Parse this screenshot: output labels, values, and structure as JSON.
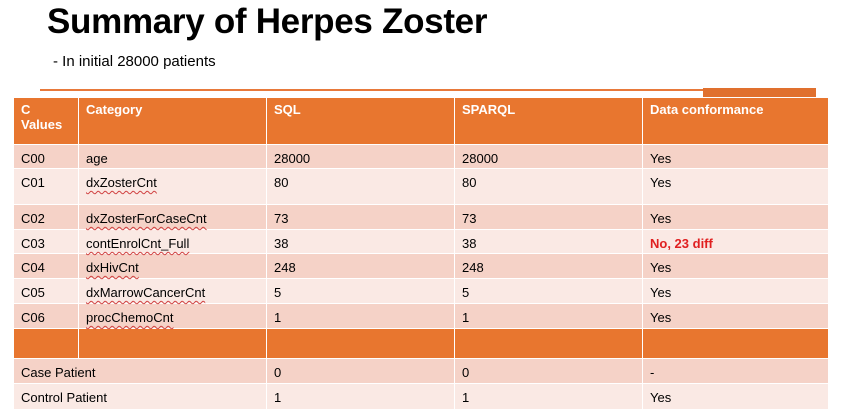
{
  "slide": {
    "title": "Summary of Herpes Zoster",
    "subtitle": "- In initial 28000 patients"
  },
  "table": {
    "headers": [
      "C Values",
      "Category",
      "SQL",
      "SPARQL",
      "Data conformance"
    ],
    "rows": [
      {
        "c": "C00",
        "category": "age",
        "sql": "28000",
        "sparql": "28000",
        "conformance": "Yes"
      },
      {
        "c": "C01",
        "category": "dxZosterCnt",
        "sql": "80",
        "sparql": "80",
        "conformance": "Yes"
      },
      {
        "c": "C02",
        "category": "dxZosterForCaseCnt",
        "sql": "73",
        "sparql": "73",
        "conformance": "Yes"
      },
      {
        "c": "C03",
        "category": "contEnrolCnt_Full",
        "sql": "38",
        "sparql": "38",
        "conformance": "No, 23 diff"
      },
      {
        "c": "C04",
        "category": "dxHivCnt",
        "sql": "248",
        "sparql": "248",
        "conformance": "Yes"
      },
      {
        "c": "C05",
        "category": "dxMarrowCancerCnt",
        "sql": "5",
        "sparql": "5",
        "conformance": "Yes"
      },
      {
        "c": "C06",
        "category": "procChemoCnt",
        "sql": "1",
        "sparql": "1",
        "conformance": "Yes"
      }
    ],
    "patients": [
      {
        "label": "Case Patient",
        "sql": "0",
        "sparql": "0",
        "conformance": "-"
      },
      {
        "label": "Control Patient",
        "sql": "1",
        "sparql": "1",
        "conformance": "Yes"
      }
    ]
  },
  "colors": {
    "header": "#E8762F",
    "band": "#F5D2C7",
    "light": "#FAE9E4",
    "alert": "#E02020"
  }
}
